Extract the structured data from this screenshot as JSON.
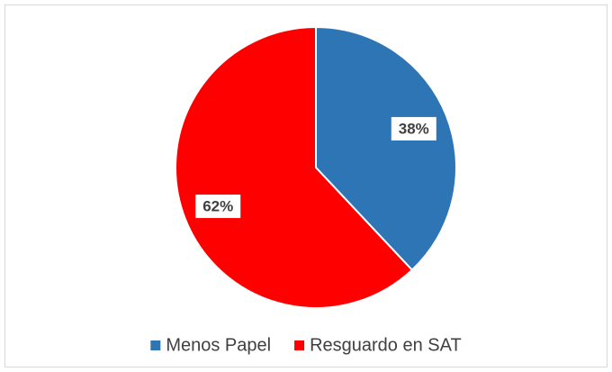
{
  "chart_data": {
    "type": "pie",
    "categories": [
      "Menos Papel",
      "Resguardo en SAT"
    ],
    "values": [
      38,
      62
    ],
    "value_labels": [
      "38%",
      "62%"
    ],
    "colors": [
      "#2e75b6",
      "#ff0000"
    ],
    "legend": "bottom"
  }
}
